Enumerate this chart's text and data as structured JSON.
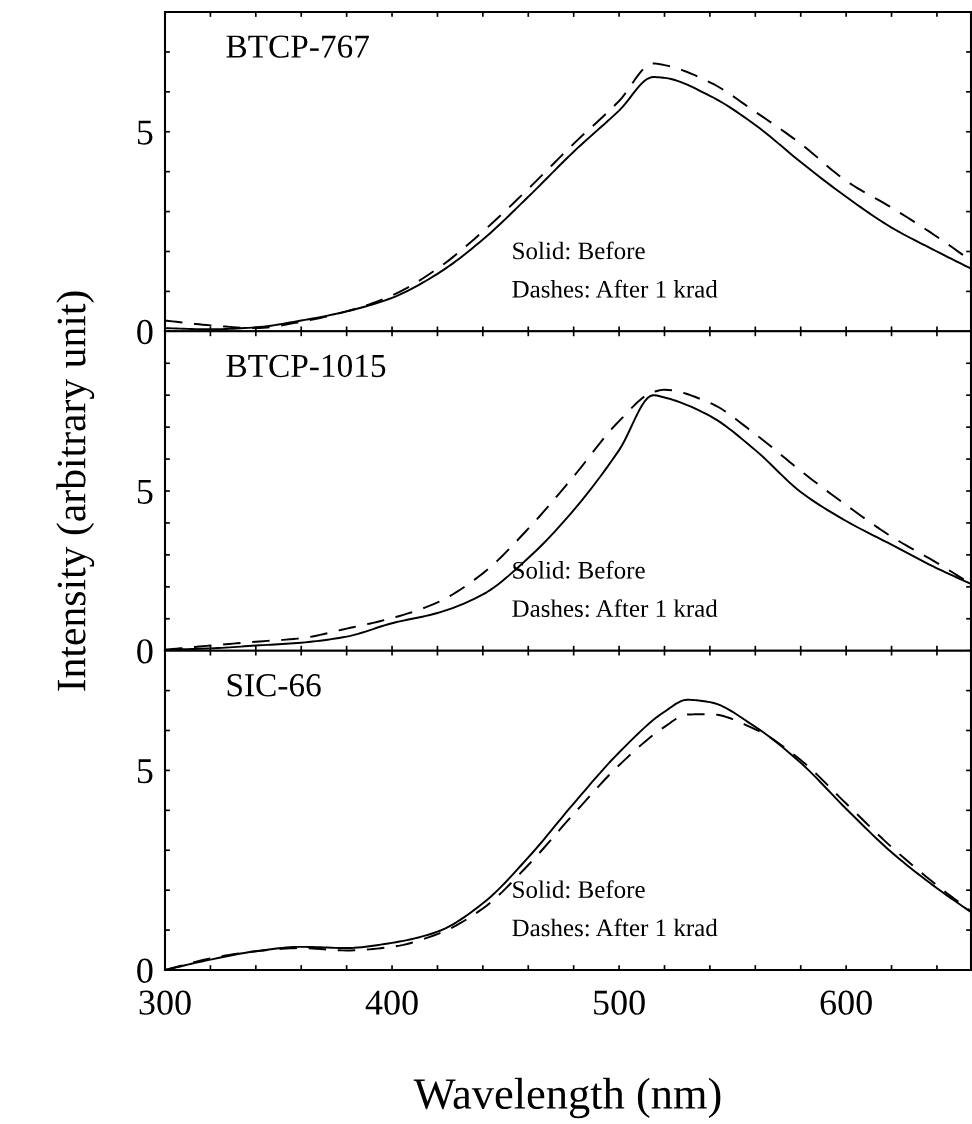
{
  "chart_data": [
    {
      "type": "line",
      "title": "BTCP-767",
      "annotations": [
        "Solid: Before",
        "Dashes: After 1 krad"
      ],
      "x": [
        300,
        320,
        340,
        360,
        380,
        400,
        420,
        440,
        460,
        480,
        500,
        515,
        520,
        540,
        560,
        580,
        600,
        620,
        640,
        655
      ],
      "series": [
        {
          "color": "#000000",
          "line_style": "solid",
          "values": [
            0.08,
            0.05,
            0.1,
            0.27,
            0.5,
            0.84,
            1.44,
            2.3,
            3.37,
            4.5,
            5.53,
            6.37,
            6.35,
            5.9,
            5.17,
            4.24,
            3.37,
            2.6,
            2.0,
            1.57
          ]
        },
        {
          "color": "#000000",
          "line_style": "dashed",
          "values": [
            0.27,
            0.15,
            0.08,
            0.24,
            0.5,
            0.9,
            1.57,
            2.5,
            3.57,
            4.7,
            5.77,
            6.71,
            6.67,
            6.24,
            5.5,
            4.7,
            3.77,
            3.1,
            2.37,
            1.77
          ]
        }
      ],
      "xlim": [
        300,
        655
      ],
      "ylim": [
        0,
        8
      ],
      "xticks": [
        300,
        {
          "value": 320,
          "label": null
        },
        {
          "value": 340,
          "label": null
        },
        {
          "value": 360,
          "label": null
        },
        {
          "value": 380,
          "label": null
        },
        400,
        {
          "value": 420,
          "label": null
        },
        {
          "value": 440,
          "label": null
        },
        {
          "value": 460,
          "label": null
        },
        {
          "value": 480,
          "label": null
        },
        500,
        {
          "value": 520,
          "label": null
        },
        {
          "value": 540,
          "label": null
        },
        {
          "value": 560,
          "label": null
        },
        {
          "value": 580,
          "label": null
        },
        600,
        {
          "value": 620,
          "label": null
        },
        {
          "value": 640,
          "label": null
        }
      ],
      "yticks": [
        0,
        {
          "value": 1,
          "label": null
        },
        {
          "value": 2,
          "label": null
        },
        {
          "value": 3,
          "label": null
        },
        {
          "value": 4,
          "label": null
        },
        5,
        {
          "value": 6,
          "label": null
        },
        {
          "value": 7,
          "label": null
        }
      ],
      "tick_labels": "y",
      "grid": false,
      "legend": false,
      "marker": "none"
    },
    {
      "type": "line",
      "title": "BTCP-1015",
      "ylabel": "Intensity (arbitrary unit)",
      "annotations": [
        "Solid: Before",
        "Dashes: After 1 krad"
      ],
      "x": [
        300,
        320,
        340,
        360,
        380,
        400,
        420,
        440,
        460,
        480,
        500,
        515,
        520,
        540,
        560,
        580,
        600,
        620,
        640,
        655
      ],
      "series": [
        {
          "color": "#000000",
          "line_style": "solid",
          "values": [
            0.03,
            0.07,
            0.16,
            0.25,
            0.44,
            0.86,
            1.18,
            1.76,
            2.9,
            4.4,
            6.28,
            8.0,
            7.93,
            7.35,
            6.28,
            4.97,
            4.06,
            3.32,
            2.58,
            2.09
          ]
        },
        {
          "color": "#000000",
          "line_style": "dashed",
          "values": [
            0.03,
            0.16,
            0.28,
            0.39,
            0.69,
            1.02,
            1.51,
            2.42,
            3.82,
            5.46,
            7.19,
            8.1,
            8.17,
            7.76,
            6.78,
            5.63,
            4.56,
            3.57,
            2.75,
            2.09
          ]
        }
      ],
      "xlim": [
        300,
        655
      ],
      "ylim": [
        0,
        10
      ],
      "xticks": [
        300,
        {
          "value": 320,
          "label": null
        },
        {
          "value": 340,
          "label": null
        },
        {
          "value": 360,
          "label": null
        },
        {
          "value": 380,
          "label": null
        },
        400,
        {
          "value": 420,
          "label": null
        },
        {
          "value": 440,
          "label": null
        },
        {
          "value": 460,
          "label": null
        },
        {
          "value": 480,
          "label": null
        },
        500,
        {
          "value": 520,
          "label": null
        },
        {
          "value": 540,
          "label": null
        },
        {
          "value": 560,
          "label": null
        },
        {
          "value": 580,
          "label": null
        },
        600,
        {
          "value": 620,
          "label": null
        },
        {
          "value": 640,
          "label": null
        }
      ],
      "yticks": [
        0,
        {
          "value": 1,
          "label": null
        },
        {
          "value": 2,
          "label": null
        },
        {
          "value": 3,
          "label": null
        },
        {
          "value": 4,
          "label": null
        },
        5,
        {
          "value": 6,
          "label": null
        },
        {
          "value": 7,
          "label": null
        },
        {
          "value": 8,
          "label": null
        },
        {
          "value": 9,
          "label": null
        }
      ],
      "tick_labels": "y",
      "grid": false,
      "legend": false,
      "marker": "none"
    },
    {
      "type": "line",
      "title": "SIC-66",
      "xlabel": "Wavelength (nm)",
      "annotations": [
        "Solid: Before",
        "Dashes: After 1 krad"
      ],
      "x": [
        300,
        320,
        340,
        360,
        380,
        400,
        420,
        440,
        460,
        480,
        500,
        520,
        530,
        540,
        560,
        580,
        600,
        620,
        640,
        655
      ],
      "series": [
        {
          "color": "#000000",
          "line_style": "solid",
          "values": [
            0,
            0.26,
            0.47,
            0.58,
            0.55,
            0.68,
            0.96,
            1.67,
            2.82,
            4.17,
            5.45,
            6.47,
            6.77,
            6.71,
            6.09,
            5.19,
            4.04,
            2.95,
            2.05,
            1.45
          ]
        },
        {
          "color": "#000000",
          "line_style": "dashed",
          "values": [
            0,
            0.29,
            0.47,
            0.55,
            0.49,
            0.58,
            0.9,
            1.54,
            2.63,
            3.91,
            5.13,
            6.09,
            6.4,
            6.41,
            6.03,
            5.26,
            4.17,
            3.08,
            2.12,
            1.47
          ]
        }
      ],
      "xlim": [
        300,
        655
      ],
      "ylim": [
        0,
        8
      ],
      "xticks": [
        300,
        {
          "value": 320,
          "label": null
        },
        {
          "value": 340,
          "label": null
        },
        {
          "value": 360,
          "label": null
        },
        {
          "value": 380,
          "label": null
        },
        400,
        {
          "value": 420,
          "label": null
        },
        {
          "value": 440,
          "label": null
        },
        {
          "value": 460,
          "label": null
        },
        {
          "value": 480,
          "label": null
        },
        500,
        {
          "value": 520,
          "label": null
        },
        {
          "value": 540,
          "label": null
        },
        {
          "value": 560,
          "label": null
        },
        {
          "value": 580,
          "label": null
        },
        600,
        {
          "value": 620,
          "label": null
        },
        {
          "value": 640,
          "label": null
        }
      ],
      "yticks": [
        0,
        {
          "value": 1,
          "label": null
        },
        {
          "value": 2,
          "label": null
        },
        {
          "value": 3,
          "label": null
        },
        {
          "value": 4,
          "label": null
        },
        5,
        {
          "value": 6,
          "label": null
        },
        {
          "value": 7,
          "label": null
        }
      ],
      "grid": false,
      "legend": false,
      "marker": "none"
    }
  ]
}
